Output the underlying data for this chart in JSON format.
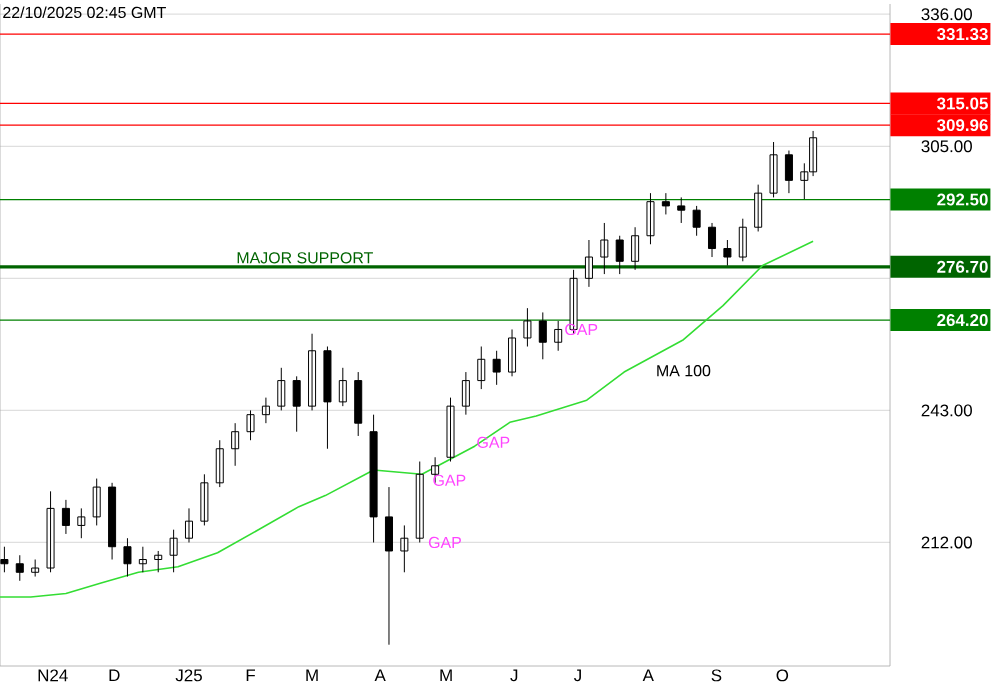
{
  "chart_data": {
    "type": "candlestick",
    "annotations": [
      "22/10/2025 02:45 GMT",
      {
        "text": "GAP",
        "x": "2025-06-26",
        "y": 262
      },
      {
        "text": "GAP",
        "x": "2025-05-17",
        "y": 235.5
      },
      {
        "text": "GAP",
        "x": "2025-04-27",
        "y": 226.6
      },
      {
        "text": "GAP",
        "x": "2025-04-25",
        "y": 212
      },
      {
        "text": "MAJOR SUPPORT",
        "x": "2025-01-30",
        "y": 276.7
      }
    ],
    "x": [
      "2024-10-18",
      "2024-10-25",
      "2024-11-01",
      "2024-11-08",
      "2024-11-15",
      "2024-11-22",
      "2024-11-29",
      "2024-12-06",
      "2024-12-13",
      "2024-12-20",
      "2024-12-27",
      "2025-01-03",
      "2025-01-10",
      "2025-01-17",
      "2025-01-24",
      "2025-01-31",
      "2025-02-07",
      "2025-02-14",
      "2025-02-21",
      "2025-02-28",
      "2025-03-07",
      "2025-03-14",
      "2025-03-21",
      "2025-03-28",
      "2025-04-04",
      "2025-04-11",
      "2025-04-18",
      "2025-04-25",
      "2025-05-02",
      "2025-05-09",
      "2025-05-16",
      "2025-05-23",
      "2025-05-30",
      "2025-06-06",
      "2025-06-13",
      "2025-06-20",
      "2025-06-27",
      "2025-07-04",
      "2025-07-11",
      "2025-07-18",
      "2025-07-25",
      "2025-08-01",
      "2025-08-08",
      "2025-08-15",
      "2025-08-22",
      "2025-08-29",
      "2025-09-05",
      "2025-09-12",
      "2025-09-19",
      "2025-09-26",
      "2025-10-03",
      "2025-10-10",
      "2025-10-17",
      "2025-10-21"
    ],
    "ohlc": [
      [
        208,
        211,
        205,
        207
      ],
      [
        207,
        209,
        203,
        205
      ],
      [
        205,
        208,
        204,
        206
      ],
      [
        206,
        224,
        205,
        220
      ],
      [
        220,
        222,
        214,
        216
      ],
      [
        216,
        220,
        213,
        218
      ],
      [
        218,
        227,
        216,
        225
      ],
      [
        225,
        226,
        208,
        211
      ],
      [
        211,
        213,
        204,
        207
      ],
      [
        207,
        211,
        205,
        208
      ],
      [
        208,
        210,
        205,
        209
      ],
      [
        209,
        215,
        205,
        213
      ],
      [
        213,
        220,
        212,
        217
      ],
      [
        217,
        228,
        216,
        226
      ],
      [
        226,
        236,
        225,
        234
      ],
      [
        234,
        240,
        230,
        238
      ],
      [
        238,
        243,
        236,
        242
      ],
      [
        242,
        246,
        240,
        244
      ],
      [
        244,
        253,
        243,
        250
      ],
      [
        250,
        251,
        238,
        244
      ],
      [
        244,
        261,
        243,
        257
      ],
      [
        257,
        258,
        234,
        245
      ],
      [
        245,
        253,
        244,
        250
      ],
      [
        250,
        252,
        237,
        240
      ],
      [
        238,
        242,
        212,
        218
      ],
      [
        218,
        225,
        188,
        210
      ],
      [
        210,
        216,
        205,
        213
      ],
      [
        213,
        231,
        212,
        228
      ],
      [
        228,
        232,
        226,
        230
      ],
      [
        232,
        246,
        231,
        244
      ],
      [
        244,
        252,
        242,
        250
      ],
      [
        250,
        258,
        248,
        255
      ],
      [
        255,
        257,
        249,
        252
      ],
      [
        252,
        262,
        251,
        260
      ],
      [
        260,
        267,
        258,
        264
      ],
      [
        264,
        266,
        255,
        259
      ],
      [
        259,
        264,
        257,
        262
      ],
      [
        262,
        276,
        261,
        274
      ],
      [
        274,
        283,
        272,
        279
      ],
      [
        279,
        287,
        275,
        283
      ],
      [
        283,
        284,
        275,
        278
      ],
      [
        278,
        286,
        276,
        284
      ],
      [
        284,
        294,
        282,
        292
      ],
      [
        292,
        294,
        289,
        291
      ],
      [
        291,
        293,
        287,
        290
      ],
      [
        290,
        291,
        284,
        286
      ],
      [
        286,
        287,
        279,
        281
      ],
      [
        281,
        283,
        277,
        279
      ],
      [
        279,
        288,
        278,
        286
      ],
      [
        286,
        296,
        285,
        294
      ],
      [
        294,
        306,
        293,
        303
      ],
      [
        303,
        304,
        294,
        297
      ],
      [
        297,
        301,
        292.6,
        299
      ],
      [
        299,
        308.6,
        298,
        307
      ]
    ],
    "series": [
      {
        "type": "line",
        "name": "MA 100",
        "color": "#33dd33",
        "x": [
          "2024-10-16",
          "2024-10-30",
          "2024-11-15",
          "2024-12-01",
          "2024-12-18",
          "2025-01-05",
          "2025-01-23",
          "2025-02-10",
          "2025-03-01",
          "2025-03-13",
          "2025-04-04",
          "2025-04-26",
          "2025-05-20",
          "2025-06-05",
          "2025-06-17",
          "2025-07-10",
          "2025-07-27",
          "2025-08-23",
          "2025-09-10",
          "2025-09-28",
          "2025-10-21"
        ],
        "values": [
          199.2,
          199.2,
          200,
          202.5,
          205,
          206.3,
          209.6,
          214.8,
          220.4,
          223,
          229,
          228,
          234.6,
          240.2,
          241.7,
          245.4,
          252,
          259.6,
          267.6,
          277,
          282.7
        ]
      }
    ],
    "xlim": [
      "2024-10-16",
      "2025-11-25"
    ],
    "xticks": [
      {
        "value": "2024-11-09",
        "label": "N24"
      },
      {
        "value": "2024-12-07",
        "label": "D"
      },
      {
        "value": "2025-01-10",
        "label": "J25"
      },
      {
        "value": "2025-02-07",
        "label": "F"
      },
      {
        "value": "2025-03-07",
        "label": "M"
      },
      {
        "value": "2025-04-07",
        "label": "A"
      },
      {
        "value": "2025-05-07",
        "label": "M"
      },
      {
        "value": "2025-06-07",
        "label": "J"
      },
      {
        "value": "2025-07-06",
        "label": "J"
      },
      {
        "value": "2025-08-07",
        "label": "A"
      },
      {
        "value": "2025-09-07",
        "label": "S"
      },
      {
        "value": "2025-10-07",
        "label": "O"
      }
    ],
    "ylim": [
      183,
      338.4
    ],
    "yticks": [
      {
        "value": 212,
        "label": "212.00"
      },
      {
        "value": 243,
        "label": "243.00"
      },
      {
        "value": 274,
        "label": null
      },
      {
        "value": 305,
        "label": "305.00"
      },
      {
        "value": 336,
        "label": "336.00"
      }
    ],
    "grid": "y",
    "tick_labels": "xy",
    "ref_lines": [
      {
        "axis": "y",
        "value": 331.33,
        "color": "#ff0000",
        "label": "331.33"
      },
      {
        "axis": "y",
        "value": 315.05,
        "color": "#ff0000",
        "label": "315.05"
      },
      {
        "axis": "y",
        "value": 309.96,
        "color": "#ff0000",
        "label": "309.96"
      },
      {
        "axis": "y",
        "value": 292.5,
        "color": "#008000",
        "label": "292.50"
      },
      {
        "axis": "y",
        "value": 276.7,
        "color": "#006400",
        "label": "276.70"
      },
      {
        "axis": "y",
        "value": 264.2,
        "color": "#008000",
        "label": "264.20"
      }
    ]
  }
}
